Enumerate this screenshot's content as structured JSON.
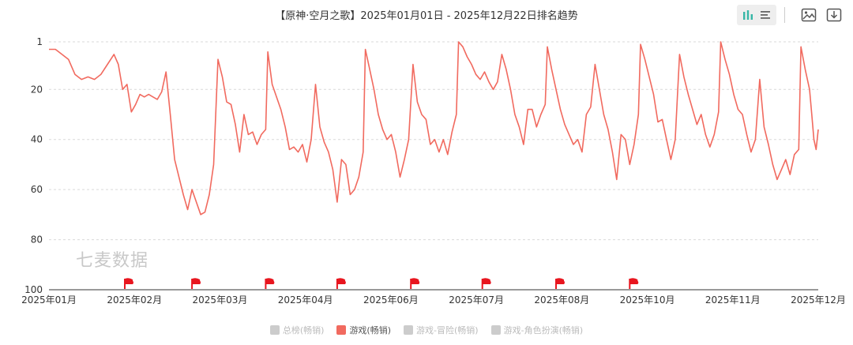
{
  "title": "【原神·空月之歌】2025年01月01日 - 2025年12月22日排名趋势",
  "watermark": "七麦数据",
  "toolbar": {
    "icons": [
      "bar-chart-icon",
      "list-icon",
      "image-icon",
      "download-icon"
    ]
  },
  "legend": [
    {
      "label": "总榜(畅销)",
      "color": "#cccccc",
      "active": false
    },
    {
      "label": "游戏(畅销)",
      "color": "#f16a5f",
      "active": true
    },
    {
      "label": "游戏-冒险(畅销)",
      "color": "#cccccc",
      "active": false
    },
    {
      "label": "游戏-角色扮演(畅销)",
      "color": "#cccccc",
      "active": false
    }
  ],
  "chart_data": {
    "type": "line",
    "y_ticks": [
      "1",
      "20",
      "40",
      "60",
      "80",
      "100"
    ],
    "y_tick_values": [
      1,
      20,
      40,
      60,
      80,
      100
    ],
    "y_range": [
      1,
      100
    ],
    "y_inverted": true,
    "x_ticks": [
      "2025年01月",
      "2025年02月",
      "2025年03月",
      "2025年04月",
      "2025年06月",
      "2025年07月",
      "2025年08月",
      "2025年10月",
      "2025年11月",
      "2025年12月"
    ],
    "x_range": [
      "2025-01-01",
      "2025-12-22"
    ],
    "grid": true,
    "line_color": "#f16a5f",
    "flag_color": "#e8161f",
    "flags": [
      "2025-02-05",
      "2025-03-08",
      "2025-04-11",
      "2025-05-14",
      "2025-06-17",
      "2025-07-20",
      "2025-08-23",
      "2025-09-26"
    ],
    "series": [
      {
        "name": "游戏(畅销)",
        "points": [
          [
            "2025-01-01",
            4
          ],
          [
            "2025-01-04",
            4
          ],
          [
            "2025-01-07",
            6
          ],
          [
            "2025-01-10",
            8
          ],
          [
            "2025-01-13",
            14
          ],
          [
            "2025-01-16",
            16
          ],
          [
            "2025-01-19",
            15
          ],
          [
            "2025-01-22",
            16
          ],
          [
            "2025-01-25",
            14
          ],
          [
            "2025-01-28",
            10
          ],
          [
            "2025-01-31",
            6
          ],
          [
            "2025-02-02",
            10
          ],
          [
            "2025-02-04",
            20
          ],
          [
            "2025-02-06",
            18
          ],
          [
            "2025-02-08",
            29
          ],
          [
            "2025-02-10",
            26
          ],
          [
            "2025-02-12",
            22
          ],
          [
            "2025-02-14",
            23
          ],
          [
            "2025-02-16",
            22
          ],
          [
            "2025-02-18",
            23
          ],
          [
            "2025-02-20",
            24
          ],
          [
            "2025-02-22",
            21
          ],
          [
            "2025-02-24",
            13
          ],
          [
            "2025-02-26",
            30
          ],
          [
            "2025-02-28",
            48
          ],
          [
            "2025-03-02",
            55
          ],
          [
            "2025-03-04",
            62
          ],
          [
            "2025-03-06",
            68
          ],
          [
            "2025-03-08",
            60
          ],
          [
            "2025-03-10",
            65
          ],
          [
            "2025-03-12",
            70
          ],
          [
            "2025-03-14",
            69
          ],
          [
            "2025-03-16",
            62
          ],
          [
            "2025-03-18",
            50
          ],
          [
            "2025-03-20",
            8
          ],
          [
            "2025-03-22",
            15
          ],
          [
            "2025-03-24",
            25
          ],
          [
            "2025-03-26",
            26
          ],
          [
            "2025-03-28",
            34
          ],
          [
            "2025-03-30",
            45
          ],
          [
            "2025-04-01",
            30
          ],
          [
            "2025-04-03",
            38
          ],
          [
            "2025-04-05",
            37
          ],
          [
            "2025-04-07",
            42
          ],
          [
            "2025-04-09",
            38
          ],
          [
            "2025-04-11",
            36
          ],
          [
            "2025-04-12",
            5
          ],
          [
            "2025-04-14",
            18
          ],
          [
            "2025-04-16",
            23
          ],
          [
            "2025-04-18",
            28
          ],
          [
            "2025-04-20",
            35
          ],
          [
            "2025-04-22",
            44
          ],
          [
            "2025-04-24",
            43
          ],
          [
            "2025-04-26",
            45
          ],
          [
            "2025-04-28",
            42
          ],
          [
            "2025-04-30",
            49
          ],
          [
            "2025-05-02",
            40
          ],
          [
            "2025-05-04",
            18
          ],
          [
            "2025-05-06",
            35
          ],
          [
            "2025-05-08",
            41
          ],
          [
            "2025-05-10",
            45
          ],
          [
            "2025-05-12",
            52
          ],
          [
            "2025-05-14",
            65
          ],
          [
            "2025-05-16",
            48
          ],
          [
            "2025-05-18",
            50
          ],
          [
            "2025-05-20",
            62
          ],
          [
            "2025-05-22",
            60
          ],
          [
            "2025-05-24",
            55
          ],
          [
            "2025-05-26",
            45
          ],
          [
            "2025-05-27",
            4
          ],
          [
            "2025-05-29",
            12
          ],
          [
            "2025-05-31",
            20
          ],
          [
            "2025-06-02",
            30
          ],
          [
            "2025-06-04",
            36
          ],
          [
            "2025-06-06",
            40
          ],
          [
            "2025-06-08",
            38
          ],
          [
            "2025-06-10",
            45
          ],
          [
            "2025-06-12",
            55
          ],
          [
            "2025-06-14",
            48
          ],
          [
            "2025-06-16",
            40
          ],
          [
            "2025-06-18",
            10
          ],
          [
            "2025-06-20",
            25
          ],
          [
            "2025-06-22",
            30
          ],
          [
            "2025-06-24",
            32
          ],
          [
            "2025-06-26",
            42
          ],
          [
            "2025-06-28",
            40
          ],
          [
            "2025-06-30",
            45
          ],
          [
            "2025-07-02",
            40
          ],
          [
            "2025-07-04",
            46
          ],
          [
            "2025-07-06",
            37
          ],
          [
            "2025-07-08",
            30
          ],
          [
            "2025-07-09",
            1
          ],
          [
            "2025-07-11",
            3
          ],
          [
            "2025-07-13",
            7
          ],
          [
            "2025-07-15",
            10
          ],
          [
            "2025-07-17",
            14
          ],
          [
            "2025-07-19",
            16
          ],
          [
            "2025-07-21",
            13
          ],
          [
            "2025-07-23",
            17
          ],
          [
            "2025-07-25",
            20
          ],
          [
            "2025-07-27",
            17
          ],
          [
            "2025-07-29",
            6
          ],
          [
            "2025-07-31",
            12
          ],
          [
            "2025-08-02",
            20
          ],
          [
            "2025-08-04",
            30
          ],
          [
            "2025-08-06",
            35
          ],
          [
            "2025-08-08",
            42
          ],
          [
            "2025-08-10",
            28
          ],
          [
            "2025-08-12",
            28
          ],
          [
            "2025-08-14",
            35
          ],
          [
            "2025-08-16",
            30
          ],
          [
            "2025-08-18",
            26
          ],
          [
            "2025-08-19",
            3
          ],
          [
            "2025-08-21",
            12
          ],
          [
            "2025-08-23",
            20
          ],
          [
            "2025-08-25",
            28
          ],
          [
            "2025-08-27",
            34
          ],
          [
            "2025-08-29",
            38
          ],
          [
            "2025-08-31",
            42
          ],
          [
            "2025-09-02",
            40
          ],
          [
            "2025-09-04",
            45
          ],
          [
            "2025-09-06",
            30
          ],
          [
            "2025-09-08",
            27
          ],
          [
            "2025-09-10",
            10
          ],
          [
            "2025-09-12",
            20
          ],
          [
            "2025-09-14",
            30
          ],
          [
            "2025-09-16",
            36
          ],
          [
            "2025-09-18",
            45
          ],
          [
            "2025-09-20",
            56
          ],
          [
            "2025-09-22",
            38
          ],
          [
            "2025-09-24",
            40
          ],
          [
            "2025-09-26",
            50
          ],
          [
            "2025-09-28",
            42
          ],
          [
            "2025-09-30",
            30
          ],
          [
            "2025-10-01",
            2
          ],
          [
            "2025-10-03",
            8
          ],
          [
            "2025-10-05",
            15
          ],
          [
            "2025-10-07",
            22
          ],
          [
            "2025-10-09",
            33
          ],
          [
            "2025-10-11",
            32
          ],
          [
            "2025-10-13",
            40
          ],
          [
            "2025-10-15",
            48
          ],
          [
            "2025-10-17",
            40
          ],
          [
            "2025-10-19",
            6
          ],
          [
            "2025-10-21",
            15
          ],
          [
            "2025-10-23",
            22
          ],
          [
            "2025-10-25",
            28
          ],
          [
            "2025-10-27",
            34
          ],
          [
            "2025-10-29",
            30
          ],
          [
            "2025-10-31",
            38
          ],
          [
            "2025-11-02",
            43
          ],
          [
            "2025-11-04",
            38
          ],
          [
            "2025-11-06",
            29
          ],
          [
            "2025-11-07",
            1
          ],
          [
            "2025-11-09",
            8
          ],
          [
            "2025-11-11",
            14
          ],
          [
            "2025-11-13",
            22
          ],
          [
            "2025-11-15",
            28
          ],
          [
            "2025-11-17",
            30
          ],
          [
            "2025-11-19",
            38
          ],
          [
            "2025-11-21",
            45
          ],
          [
            "2025-11-23",
            40
          ],
          [
            "2025-11-25",
            16
          ],
          [
            "2025-11-27",
            35
          ],
          [
            "2025-11-29",
            42
          ],
          [
            "2025-12-01",
            50
          ],
          [
            "2025-12-03",
            56
          ],
          [
            "2025-12-05",
            52
          ],
          [
            "2025-12-07",
            48
          ],
          [
            "2025-12-09",
            54
          ],
          [
            "2025-12-11",
            46
          ],
          [
            "2025-12-13",
            44
          ],
          [
            "2025-12-14",
            3
          ],
          [
            "2025-12-16",
            12
          ],
          [
            "2025-12-18",
            20
          ],
          [
            "2025-12-19",
            30
          ],
          [
            "2025-12-20",
            40
          ],
          [
            "2025-12-21",
            44
          ],
          [
            "2025-12-22",
            36
          ]
        ]
      }
    ]
  }
}
